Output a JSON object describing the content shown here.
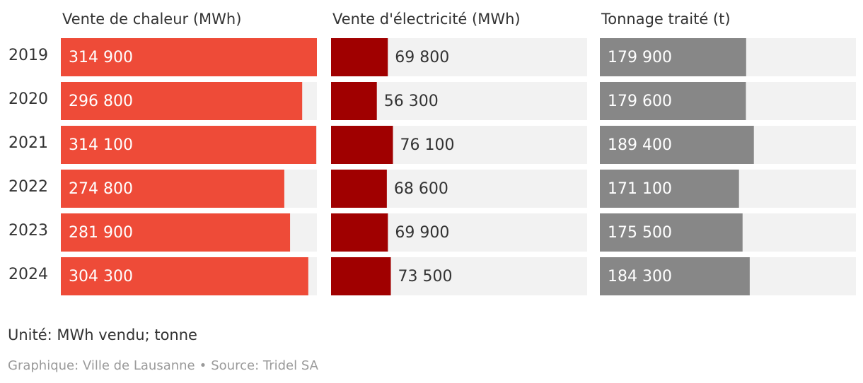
{
  "chart_data": {
    "type": "bar",
    "orientation": "horizontal",
    "categories": [
      "2019",
      "2020",
      "2021",
      "2022",
      "2023",
      "2024"
    ],
    "panels": [
      {
        "title": "Vente de chaleur (MWh)",
        "values": [
          314900,
          296800,
          314100,
          274800,
          281900,
          304300
        ],
        "labels": [
          "314 900",
          "296 800",
          "314 100",
          "274 800",
          "281 900",
          "304 300"
        ],
        "xlim": [
          0,
          314900
        ],
        "color": "#ee4b38",
        "label_position": "inside",
        "label_color": "#ffffff"
      },
      {
        "title": "Vente d'électricité (MWh)",
        "values": [
          69800,
          56300,
          76100,
          68600,
          69900,
          73500
        ],
        "labels": [
          "69 800",
          "56 300",
          "76 100",
          "68 600",
          "69 900",
          "73 500"
        ],
        "xlim": [
          0,
          314900
        ],
        "color": "#a00000",
        "label_position": "outside",
        "label_color": "#333333"
      },
      {
        "title": "Tonnage traité (t)",
        "values": [
          179900,
          179600,
          189400,
          171100,
          175500,
          184300
        ],
        "labels": [
          "179 900",
          "179 600",
          "189 400",
          "171 100",
          "175 500",
          "184 300"
        ],
        "xlim": [
          0,
          314900
        ],
        "color": "#878787",
        "label_position": "inside",
        "label_color": "#ffffff"
      }
    ],
    "track_color": "#f2f2f2",
    "grid": false,
    "legend": "none"
  },
  "footer": {
    "unit_note": "Unité: MWh vendu; tonne",
    "credit_graphic": "Graphique: Ville de Lausanne",
    "credit_separator": "•",
    "credit_source": "Source: Tridel SA"
  }
}
